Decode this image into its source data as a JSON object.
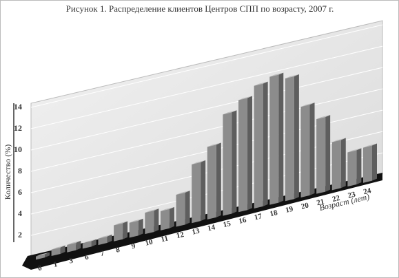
{
  "chart_data": {
    "type": "bar3d",
    "title": "Рисунок 1. Распределение клиентов Центров СПП по возрасту, 2007 г.",
    "x_label": "Возраст (лет)",
    "y_label": "Количество (%)",
    "categories": [
      "0",
      "1",
      "3",
      "6",
      "7",
      "8",
      "9",
      "10",
      "11",
      "12",
      "13",
      "14",
      "15",
      "16",
      "17",
      "18",
      "19",
      "20",
      "21",
      "22",
      "23",
      "24"
    ],
    "values": [
      0.3,
      0.6,
      0.7,
      0.5,
      0.6,
      1.5,
      1.4,
      2,
      1.8,
      3,
      5.5,
      6.8,
      9.5,
      10.5,
      11.5,
      12,
      11.5,
      8.5,
      7,
      4.5,
      3.2,
      3.3
    ],
    "color": "#8c8c8c",
    "ylim": [
      0,
      14
    ],
    "yticks": [
      2,
      4,
      6,
      8,
      10,
      12,
      14
    ],
    "grid": true
  }
}
